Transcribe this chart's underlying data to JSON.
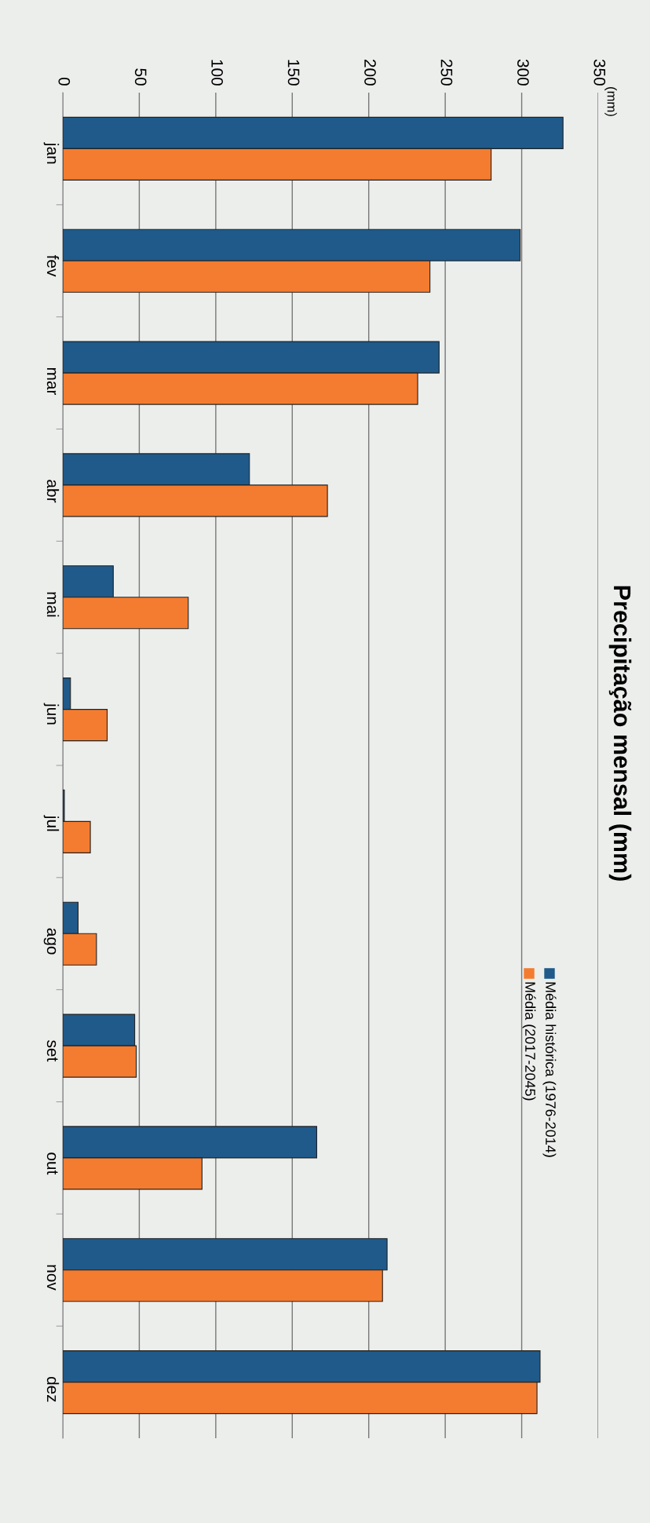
{
  "chart_data": {
    "type": "bar",
    "orientation": "horizontal",
    "title": "Precipitação mensal (mm)",
    "annotations": [
      "(mm)"
    ],
    "categories": [
      "jan",
      "fev",
      "mar",
      "abr",
      "mai",
      "jun",
      "jul",
      "ago",
      "set",
      "out",
      "nov",
      "dez"
    ],
    "series": [
      {
        "name": "Média histórica (1976-2014)",
        "color": "#1f5a8a",
        "values": [
          327,
          299,
          246,
          122,
          33,
          5,
          1,
          10,
          47,
          166,
          212,
          312
        ]
      },
      {
        "name": "Média (2017-2045)",
        "color": "#f47c30",
        "values": [
          280,
          240,
          232,
          173,
          82,
          29,
          18,
          22,
          48,
          91,
          209,
          310
        ]
      }
    ],
    "xlim": [
      0,
      350
    ],
    "xticks": [
      0,
      50,
      100,
      150,
      200,
      250,
      300,
      350
    ],
    "grid": "x",
    "legend": "right"
  }
}
